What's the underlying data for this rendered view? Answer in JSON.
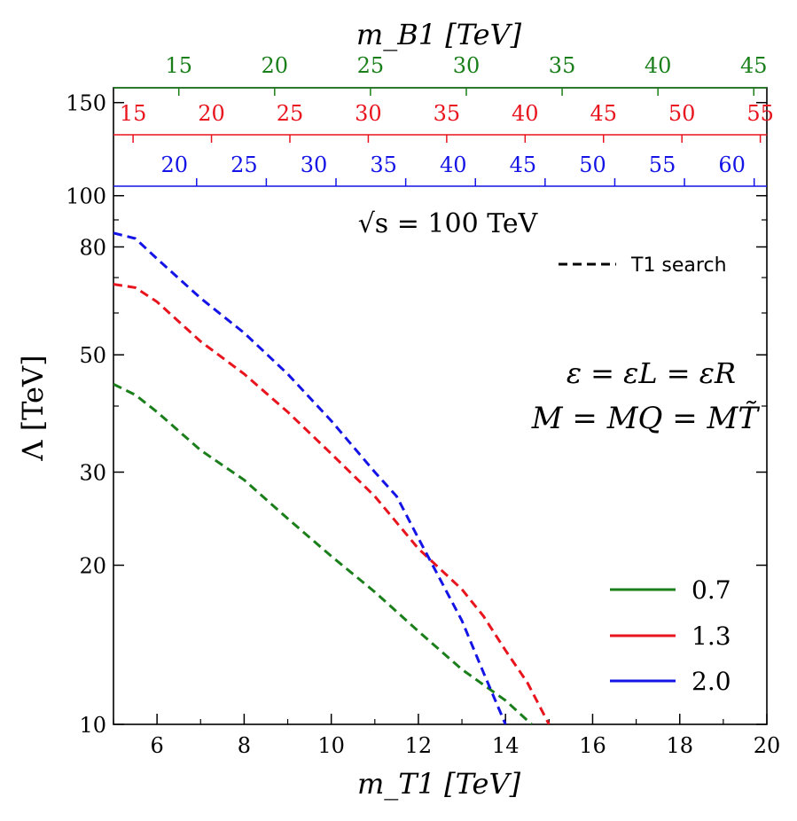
{
  "chart_data": {
    "type": "line",
    "title": "√s = 100 TeV",
    "xlabel": "m_T1 [TeV]",
    "ylabel": "Λ [TeV]",
    "xlim": [
      5,
      20
    ],
    "ylim": [
      10,
      160
    ],
    "yscale": "log",
    "grid": false,
    "x_ticks": [
      "6",
      "8",
      "10",
      "12",
      "14",
      "16",
      "18",
      "20"
    ],
    "y_ticks": [
      "10",
      "20",
      "30",
      "50",
      "80",
      "100",
      "150"
    ],
    "top_axis_title": "m_B1 [TeV]",
    "top_axes": [
      {
        "color": "#1a7f1a",
        "labels": [
          "15",
          "20",
          "25",
          "30",
          "35",
          "40",
          "45"
        ],
        "positions": [
          6.5,
          8.7,
          10.9,
          13.1,
          15.3,
          17.5,
          19.7
        ]
      },
      {
        "color": "#e8141e",
        "labels": [
          "15",
          "20",
          "25",
          "30",
          "35",
          "40",
          "45",
          "50",
          "55"
        ],
        "positions": [
          5.45,
          7.25,
          9.05,
          10.85,
          12.65,
          14.45,
          16.25,
          18.05,
          19.85
        ]
      },
      {
        "color": "#1414e6",
        "labels": [
          "20",
          "25",
          "30",
          "35",
          "40",
          "45",
          "50",
          "55",
          "60"
        ],
        "positions": [
          6.4,
          8.0,
          9.6,
          11.2,
          12.8,
          14.4,
          16.0,
          17.6,
          19.2
        ]
      }
    ],
    "line_style_legend": "T1 search",
    "annotations": [
      "ε = εL = εR",
      "M = MQ = MT̃"
    ],
    "legend_position": "bottom-right",
    "series": [
      {
        "name": "0.7",
        "color": "#1a7f1a",
        "x": [
          5.0,
          5.5,
          6.0,
          7.0,
          8.0,
          9.0,
          10.0,
          11.0,
          12.0,
          13.0,
          14.0,
          14.6
        ],
        "y": [
          44.0,
          42.0,
          39.0,
          33.0,
          29.0,
          24.5,
          20.8,
          17.8,
          15.0,
          12.7,
          11.1,
          10.0
        ]
      },
      {
        "name": "1.3",
        "color": "#e8141e",
        "x": [
          5.0,
          5.5,
          6.0,
          7.0,
          8.0,
          9.0,
          10.0,
          11.0,
          12.0,
          13.0,
          13.5,
          14.0,
          14.5,
          15.0
        ],
        "y": [
          68.0,
          67.0,
          63.0,
          53.0,
          46.0,
          39.0,
          32.5,
          27.0,
          21.5,
          18.0,
          16.0,
          13.8,
          12.0,
          10.0
        ]
      },
      {
        "name": "2.0",
        "color": "#1414e6",
        "x": [
          5.0,
          5.5,
          6.0,
          7.0,
          8.0,
          9.0,
          10.0,
          11.0,
          11.5,
          12.0,
          12.5,
          13.0,
          13.5,
          14.0
        ],
        "y": [
          85.0,
          83.0,
          76.0,
          64.0,
          55.0,
          46.0,
          37.5,
          30.0,
          27.0,
          22.5,
          18.8,
          15.7,
          12.5,
          10.0
        ]
      }
    ]
  }
}
